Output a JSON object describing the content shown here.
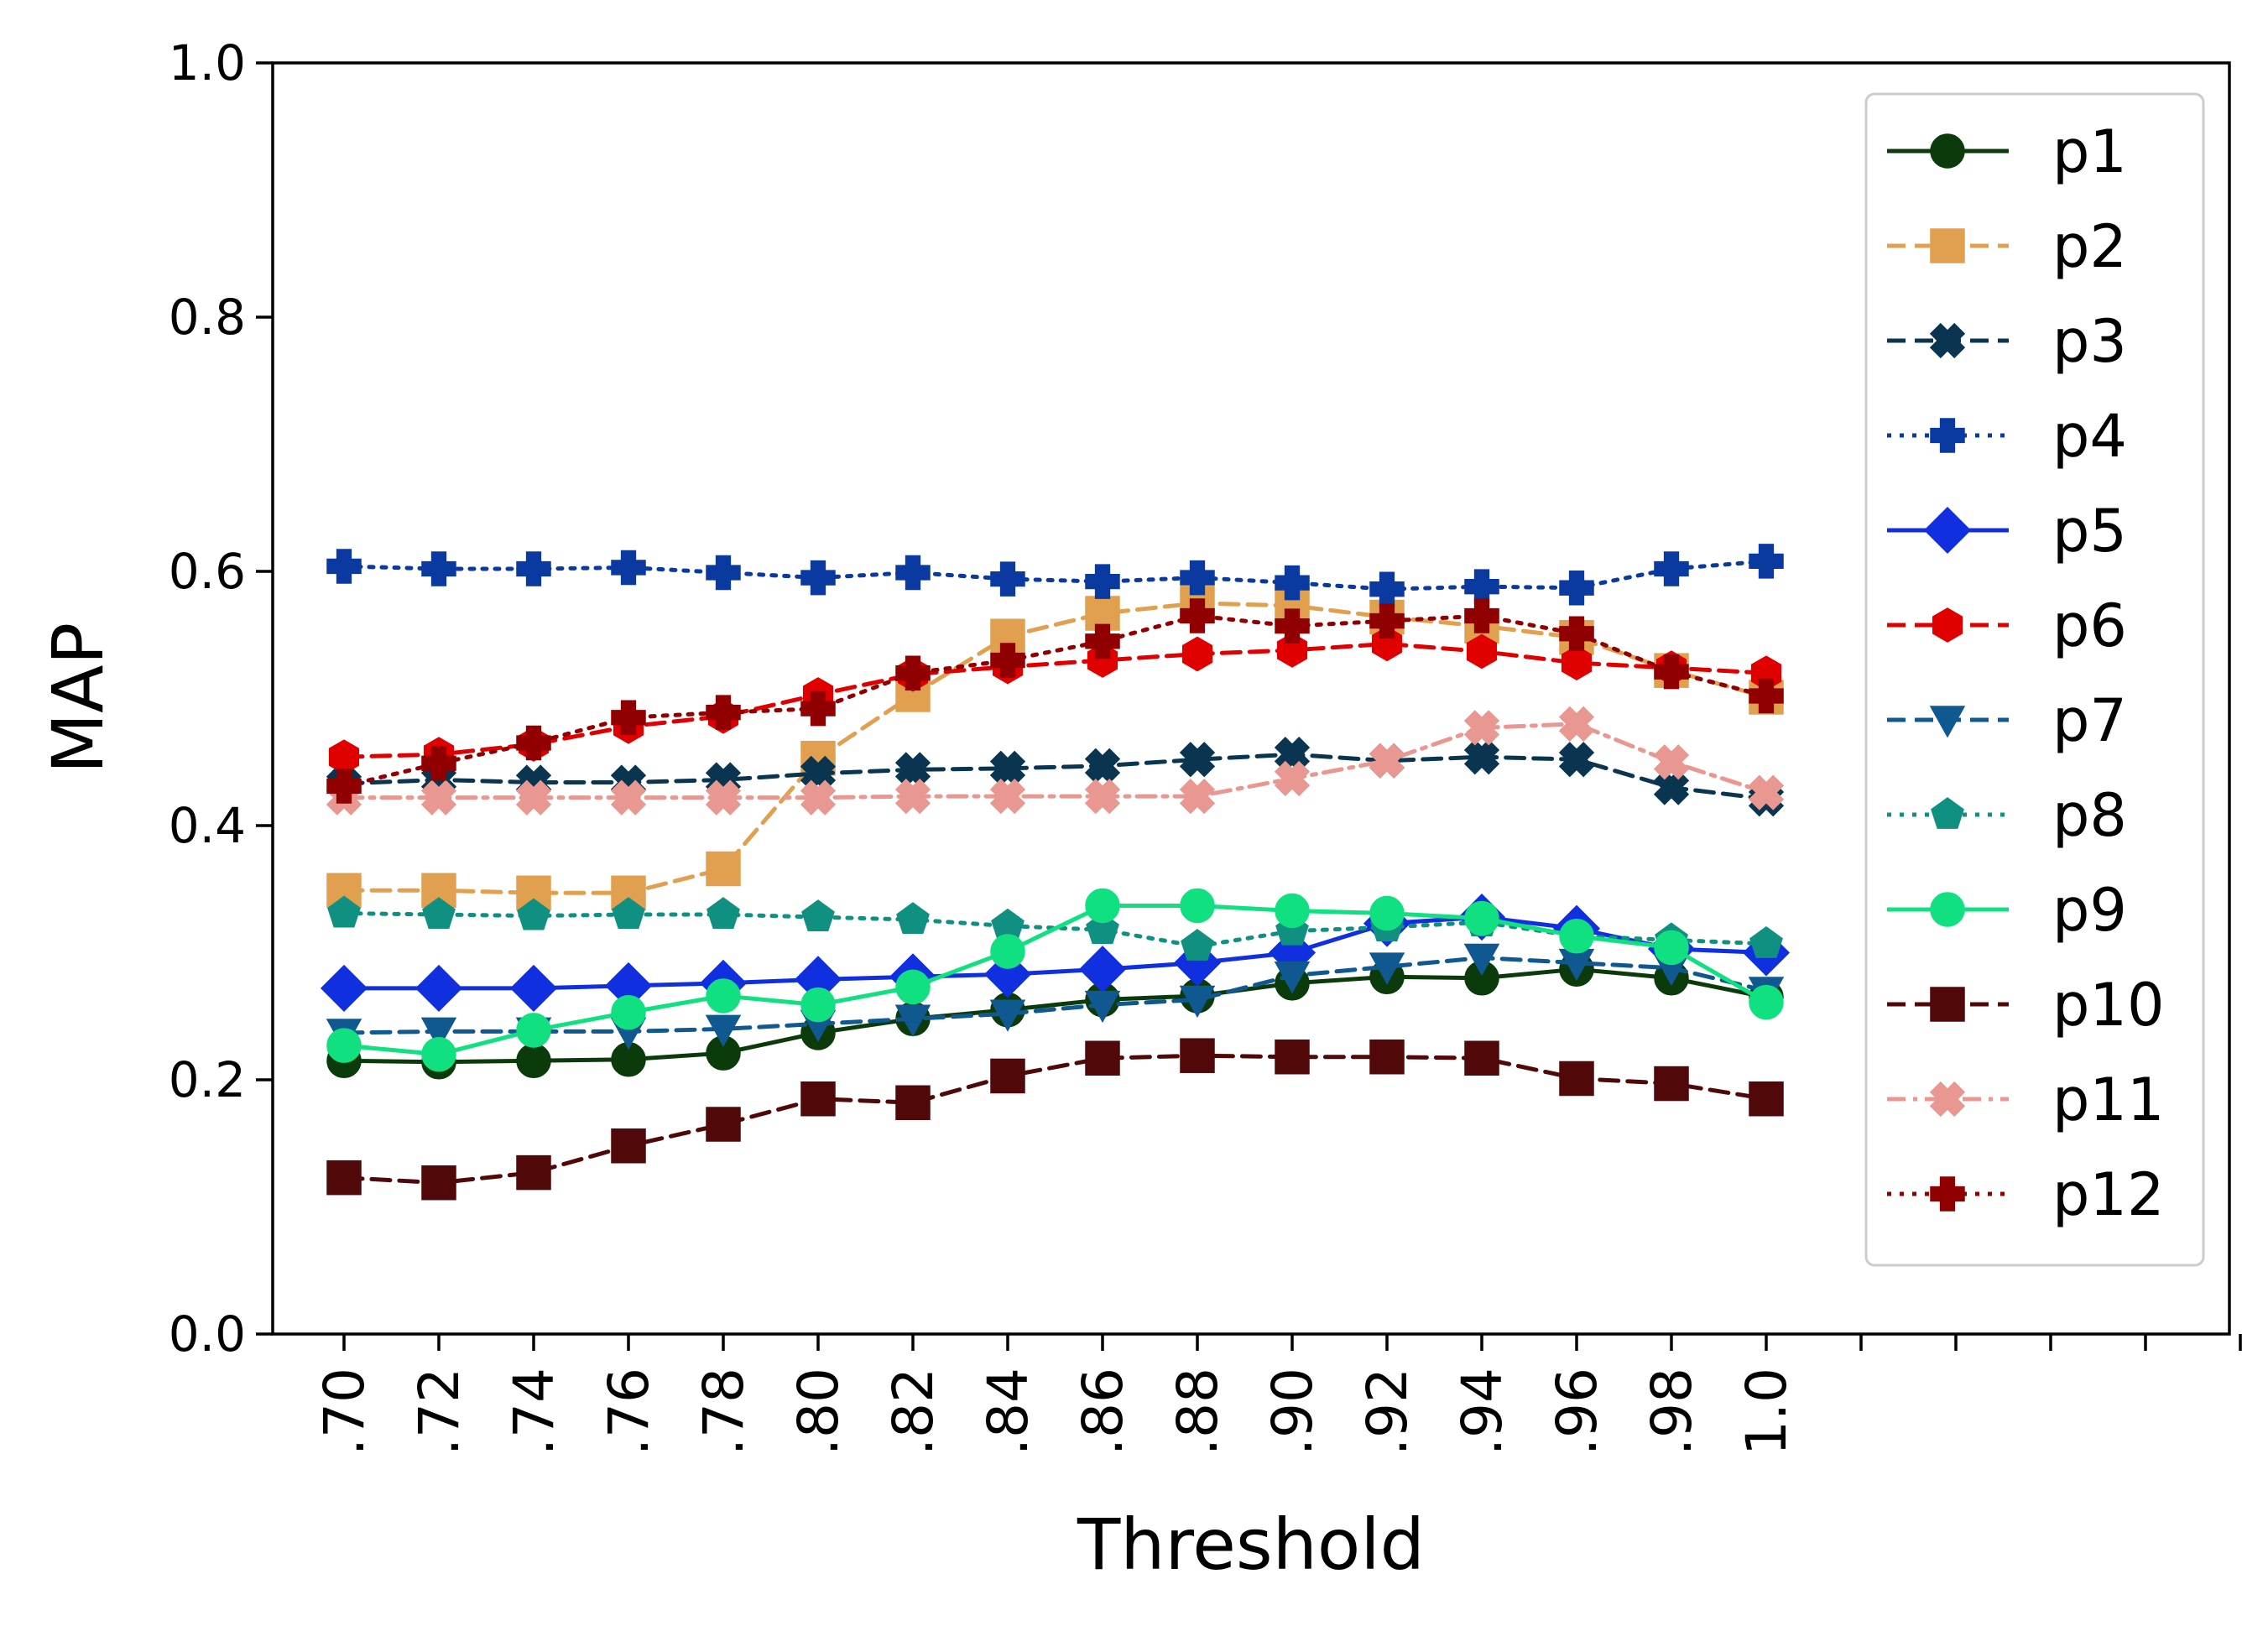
{
  "chart_data": {
    "type": "line",
    "title": "",
    "xlabel": "Threshold",
    "ylabel": "MAP",
    "ylim": [
      0.0,
      1.0
    ],
    "yticks": [
      "0.0",
      "0.2",
      "0.4",
      "0.6",
      "0.8",
      "1.0"
    ],
    "categories": [
      ".70",
      ".72",
      ".74",
      ".76",
      ".78",
      ".80",
      ".82",
      ".84",
      ".86",
      ".88",
      ".90",
      ".92",
      ".94",
      ".96",
      ".98",
      "1.0"
    ],
    "extra_empty_ticks": 5,
    "grid": false,
    "legend_position": "upper-right",
    "series": [
      {
        "name": "p1",
        "color": "#0b3a0b",
        "linestyle": "solid",
        "marker": "circle",
        "values": [
          0.215,
          0.214,
          0.215,
          0.216,
          0.221,
          0.237,
          0.248,
          0.255,
          0.263,
          0.266,
          0.276,
          0.281,
          0.28,
          0.287,
          0.28,
          0.265
        ]
      },
      {
        "name": "p2",
        "color": "#e0a050",
        "linestyle": "dashed",
        "marker": "square",
        "values": [
          0.349,
          0.349,
          0.347,
          0.347,
          0.366,
          0.453,
          0.503,
          0.549,
          0.567,
          0.575,
          0.573,
          0.564,
          0.557,
          0.548,
          0.522,
          0.501
        ]
      },
      {
        "name": "p3",
        "color": "#0a3550",
        "linestyle": "dashed",
        "marker": "x-filled",
        "values": [
          0.433,
          0.436,
          0.434,
          0.434,
          0.436,
          0.441,
          0.444,
          0.445,
          0.447,
          0.452,
          0.456,
          0.451,
          0.454,
          0.452,
          0.43,
          0.421
        ]
      },
      {
        "name": "p4",
        "color": "#0a3aa0",
        "linestyle": "dotted",
        "marker": "plus-filled",
        "values": [
          0.604,
          0.602,
          0.602,
          0.603,
          0.599,
          0.595,
          0.599,
          0.594,
          0.592,
          0.595,
          0.591,
          0.586,
          0.588,
          0.587,
          0.602,
          0.608
        ]
      },
      {
        "name": "p5",
        "color": "#1030e0",
        "linestyle": "solid",
        "marker": "diamond",
        "values": [
          0.272,
          0.272,
          0.272,
          0.274,
          0.276,
          0.279,
          0.281,
          0.283,
          0.287,
          0.292,
          0.3,
          0.323,
          0.328,
          0.319,
          0.303,
          0.3
        ]
      },
      {
        "name": "p6",
        "color": "#e00000",
        "linestyle": "dashed",
        "marker": "hexagon",
        "values": [
          0.454,
          0.456,
          0.464,
          0.478,
          0.486,
          0.503,
          0.519,
          0.525,
          0.53,
          0.535,
          0.538,
          0.543,
          0.537,
          0.528,
          0.524,
          0.52
        ]
      },
      {
        "name": "p7",
        "color": "#105890",
        "linestyle": "dashed",
        "marker": "triangle-down",
        "values": [
          0.237,
          0.238,
          0.238,
          0.238,
          0.24,
          0.244,
          0.248,
          0.252,
          0.259,
          0.263,
          0.282,
          0.289,
          0.296,
          0.292,
          0.288,
          0.27
        ]
      },
      {
        "name": "p8",
        "color": "#109080",
        "linestyle": "dotted",
        "marker": "pentagon",
        "values": [
          0.331,
          0.33,
          0.329,
          0.33,
          0.33,
          0.328,
          0.326,
          0.321,
          0.318,
          0.305,
          0.317,
          0.32,
          0.324,
          0.313,
          0.31,
          0.307
        ]
      },
      {
        "name": "p9",
        "color": "#10e080",
        "linestyle": "solid",
        "marker": "circle",
        "values": [
          0.227,
          0.22,
          0.239,
          0.253,
          0.266,
          0.259,
          0.273,
          0.301,
          0.337,
          0.337,
          0.333,
          0.331,
          0.327,
          0.313,
          0.304,
          0.261
        ]
      },
      {
        "name": "p10",
        "color": "#500808",
        "linestyle": "dashed",
        "marker": "square",
        "values": [
          0.123,
          0.119,
          0.127,
          0.148,
          0.165,
          0.185,
          0.182,
          0.203,
          0.217,
          0.219,
          0.218,
          0.218,
          0.217,
          0.201,
          0.197,
          0.185
        ]
      },
      {
        "name": "p11",
        "color": "#e89890",
        "linestyle": "dashdot",
        "marker": "x-filled",
        "values": [
          0.422,
          0.422,
          0.422,
          0.422,
          0.422,
          0.422,
          0.423,
          0.423,
          0.423,
          0.423,
          0.437,
          0.451,
          0.477,
          0.48,
          0.45,
          0.426
        ]
      },
      {
        "name": "p12",
        "color": "#900000",
        "linestyle": "dotted",
        "marker": "plus-filled",
        "values": [
          0.431,
          0.449,
          0.465,
          0.485,
          0.489,
          0.492,
          0.52,
          0.53,
          0.545,
          0.565,
          0.557,
          0.561,
          0.565,
          0.551,
          0.521,
          0.502
        ]
      }
    ]
  }
}
